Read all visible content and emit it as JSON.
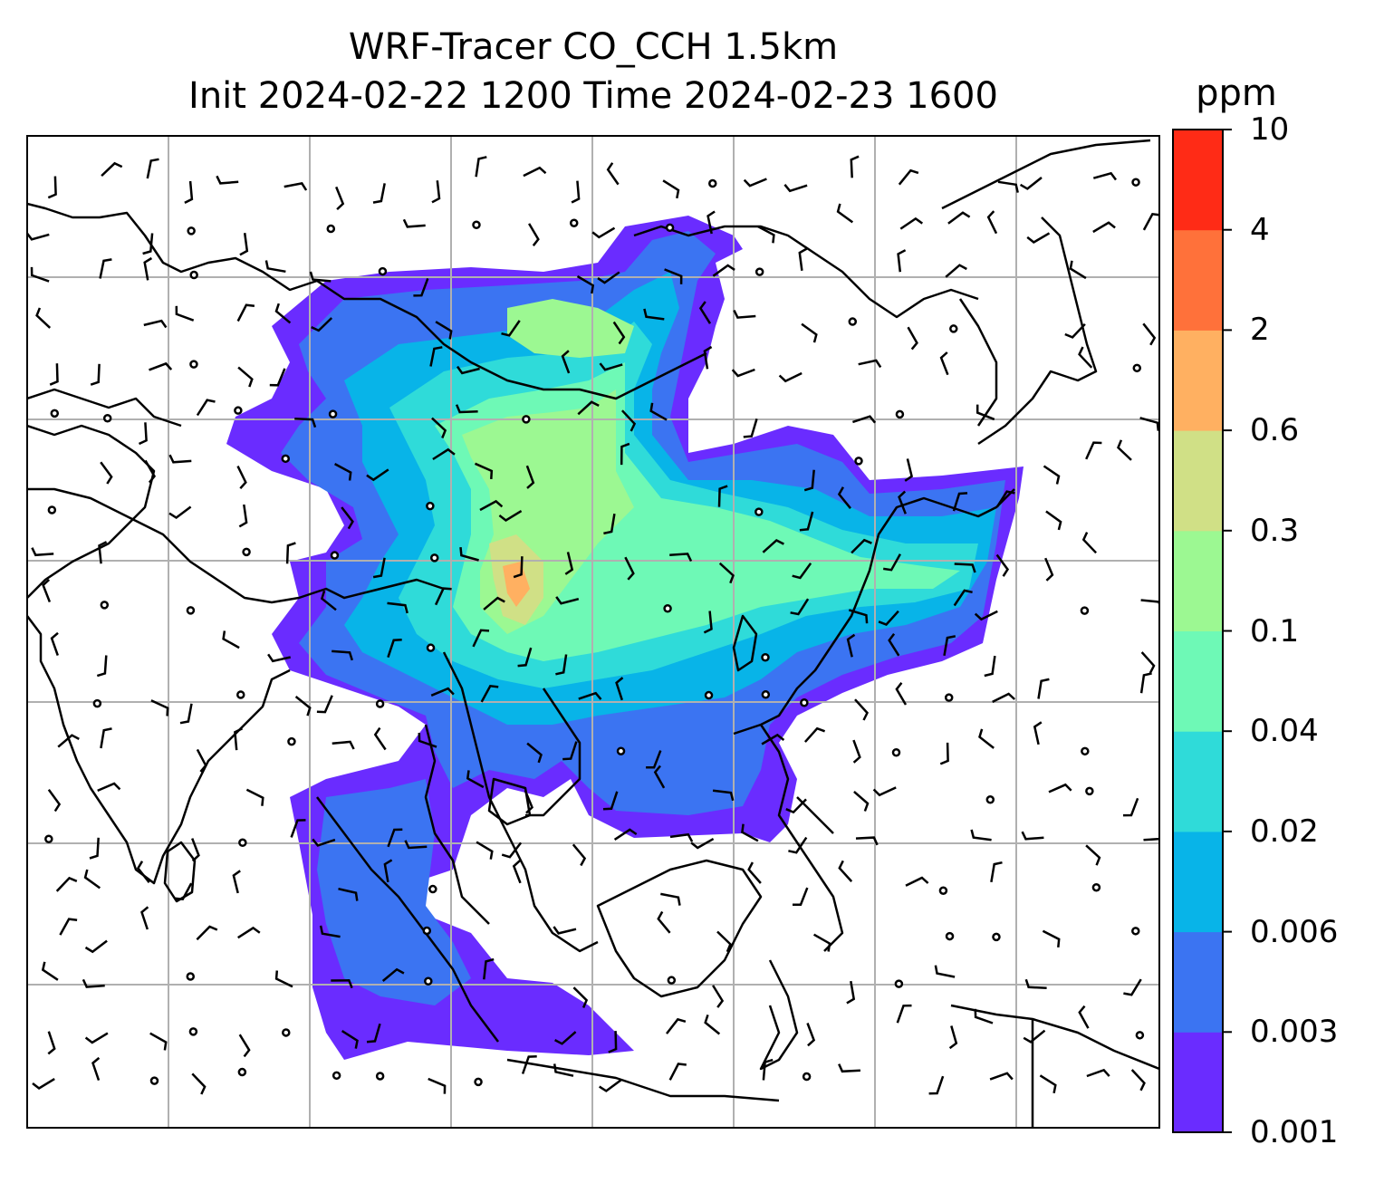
{
  "title": {
    "line1": "WRF-Tracer CO_CCH 1.5km",
    "line2": "Init 2024-02-22 1200 Time 2024-02-23 1600"
  },
  "colorbar": {
    "unit": "ppm",
    "levels": [
      "0.001",
      "0.003",
      "0.006",
      "0.02",
      "0.04",
      "0.1",
      "0.3",
      "0.6",
      "2",
      "4",
      "10"
    ],
    "colors": [
      "#6a2cff",
      "#3b74f2",
      "#08b4e8",
      "#2fdbd9",
      "#6ef9b6",
      "#9cf892",
      "#d0e086",
      "#ffb061",
      "#ff713a",
      "#ff2b16"
    ]
  },
  "map": {
    "land_outline_color": "#000000",
    "grid_color": "#b0b0b0",
    "wind_barb_color": "#000000",
    "calm_marker": "circle",
    "plume_levels_present": [
      "0.001",
      "0.003",
      "0.006",
      "0.02",
      "0.04",
      "0.1",
      "0.3",
      "0.6"
    ]
  }
}
